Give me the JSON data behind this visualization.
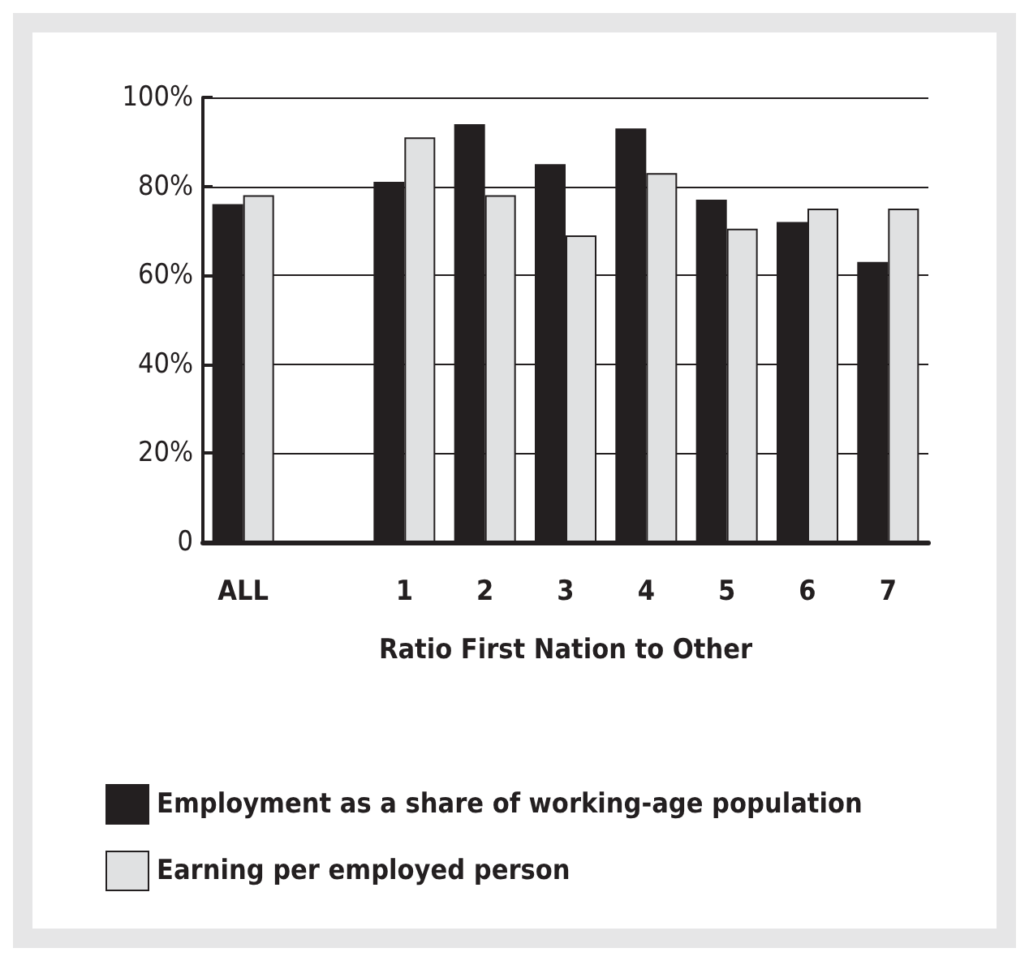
{
  "chart_data": {
    "type": "bar",
    "xlabel": "Ratio First Nation to Other",
    "categories": [
      "ALL",
      null,
      "1",
      "2",
      "3",
      "4",
      "5",
      "6",
      "7"
    ],
    "series": [
      {
        "name": "Employment as a share of working-age population",
        "color": "#231f20",
        "values": [
          76,
          null,
          81,
          94,
          85,
          93,
          77,
          72,
          63
        ]
      },
      {
        "name": "Earning per employed person",
        "color": "#e0e1e2",
        "values": [
          78,
          null,
          91,
          78,
          69,
          83,
          70.5,
          75,
          75
        ]
      }
    ],
    "ylim": [
      0,
      100
    ],
    "yticks": [
      {
        "value": 0,
        "label": "0"
      },
      {
        "value": 20,
        "label": "20%"
      },
      {
        "value": 40,
        "label": "40%"
      },
      {
        "value": 60,
        "label": "60%"
      },
      {
        "value": 80,
        "label": "80%"
      },
      {
        "value": 100,
        "label": "100%"
      }
    ],
    "grid": "y",
    "legend": "bottom"
  }
}
